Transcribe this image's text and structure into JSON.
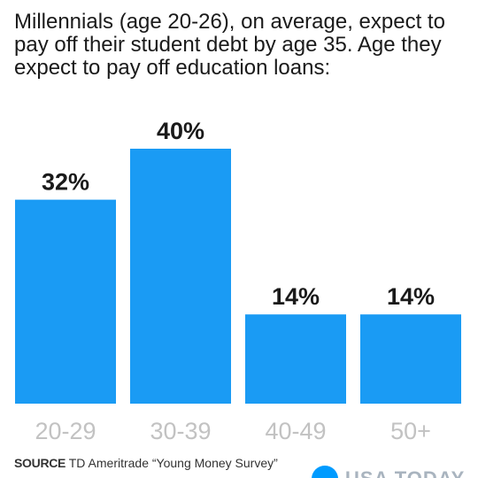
{
  "title": "Millennials (age 20-26), on average, expect to pay off their student debt by age 35. Age they expect to pay off education loans:",
  "source_label": "SOURCE",
  "source_text": "TD Ameritrade “Young Money Survey”",
  "logo_text": "USA TODAY",
  "colors": {
    "bar": "#1a9bf4",
    "category_label": "#c2c2c2",
    "value_label": "#1a1a1a",
    "logo_dot": "#009bff"
  },
  "chart_data": {
    "type": "bar",
    "categories": [
      "20-29",
      "30-39",
      "40-49",
      "50+"
    ],
    "values": [
      32,
      40,
      14,
      14
    ],
    "value_labels": [
      "32%",
      "40%",
      "14%",
      "14%"
    ],
    "unit": "%",
    "ylim": [
      0,
      40
    ],
    "grid": false,
    "legend": "none"
  }
}
